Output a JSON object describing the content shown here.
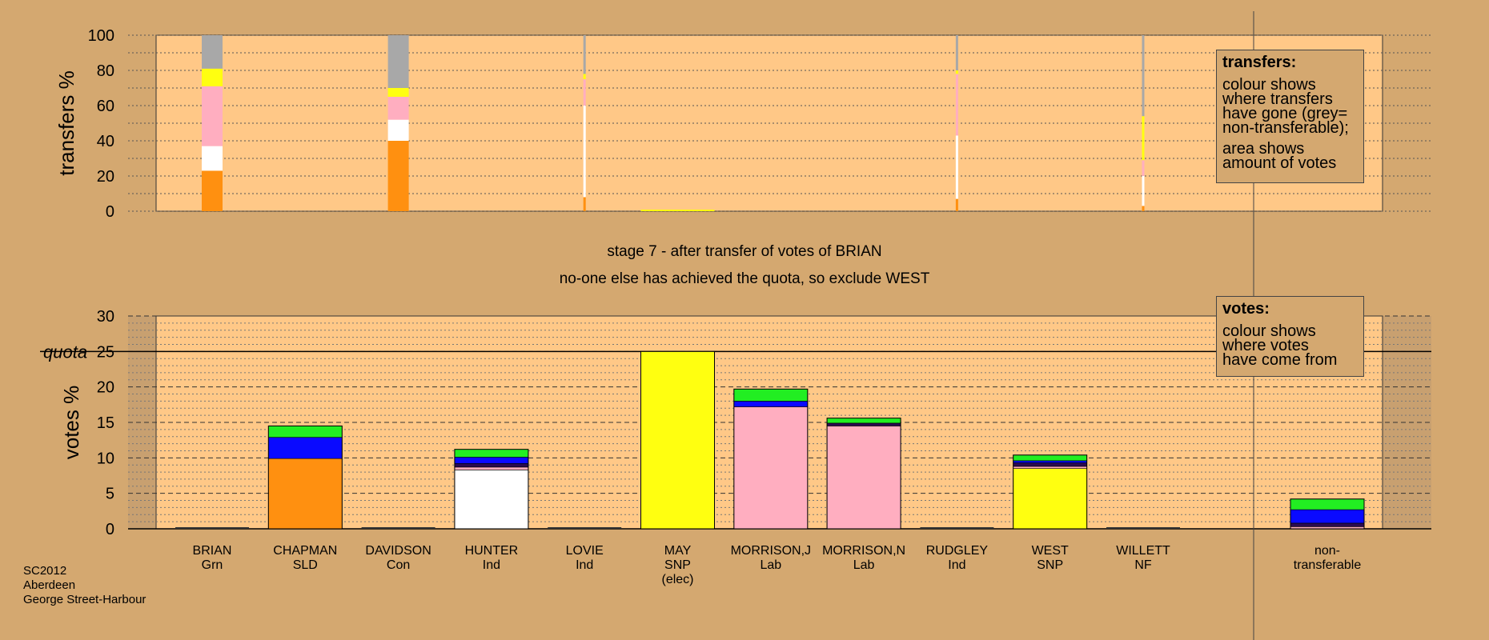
{
  "header": {
    "stage_line": "stage 7 - after transfer of votes of BRIAN",
    "note_line": "no-one else has achieved the quota, so exclude WEST"
  },
  "caption": [
    "SC2012",
    "Aberdeen",
    "George Street-Harbour"
  ],
  "legend_transfers": {
    "title": "transfers:",
    "lines_a": [
      "colour shows",
      "where transfers",
      "have gone (grey=",
      "non-transferable);"
    ],
    "lines_b": [
      "area shows",
      "amount of votes"
    ]
  },
  "legend_votes": {
    "title": "votes:",
    "lines": [
      "colour shows",
      "where votes",
      "have come from"
    ]
  },
  "colors": {
    "Grn": "#22ee22",
    "SLD": "#ff9010",
    "Con": "#0a0aff",
    "Ind": "#ffffff",
    "SNP": "#ffff10",
    "Lab": "#ffaec0",
    "NF": "#2a0a50",
    "non": "#a8a8a8",
    "panel": "#ffc887",
    "page": "#d4a870"
  },
  "chart_data": [
    {
      "type": "bar",
      "ylabel": "transfers %",
      "ylim": [
        0,
        100
      ],
      "yticks": [
        0,
        20,
        40,
        60,
        80,
        100
      ],
      "grid": true,
      "bars": [
        {
          "candidate": "BRIAN",
          "width": "full",
          "segments": [
            {
              "party": "SLD",
              "value": 23
            },
            {
              "party": "Ind",
              "value": 14
            },
            {
              "party": "Lab",
              "value": 34
            },
            {
              "party": "SNP",
              "value": 10
            },
            {
              "party": "non",
              "value": 19
            }
          ]
        },
        {
          "candidate": "DAVIDSON",
          "width": "full",
          "segments": [
            {
              "party": "SLD",
              "value": 40
            },
            {
              "party": "Ind",
              "value": 12
            },
            {
              "party": "Lab",
              "value": 13
            },
            {
              "party": "SNP",
              "value": 5
            },
            {
              "party": "non",
              "value": 30
            }
          ]
        },
        {
          "candidate": "LOVIE",
          "width": "thin",
          "segments": [
            {
              "party": "SLD",
              "value": 8
            },
            {
              "party": "Ind",
              "value": 52
            },
            {
              "party": "Lab",
              "value": 15
            },
            {
              "party": "SNP",
              "value": 3
            },
            {
              "party": "non",
              "value": 22
            }
          ]
        },
        {
          "candidate": "MAY",
          "width": "flat",
          "segments": [
            {
              "party": "SNP",
              "value": 1
            }
          ]
        },
        {
          "candidate": "RUDGLEY",
          "width": "thin",
          "segments": [
            {
              "party": "SLD",
              "value": 7
            },
            {
              "party": "Ind",
              "value": 36
            },
            {
              "party": "Lab",
              "value": 35
            },
            {
              "party": "SNP",
              "value": 2
            },
            {
              "party": "non",
              "value": 20
            }
          ]
        },
        {
          "candidate": "WILLETT",
          "width": "thin",
          "segments": [
            {
              "party": "SLD",
              "value": 3
            },
            {
              "party": "Ind",
              "value": 17
            },
            {
              "party": "Lab",
              "value": 9
            },
            {
              "party": "SNP",
              "value": 25
            },
            {
              "party": "non",
              "value": 46
            }
          ]
        }
      ]
    },
    {
      "type": "bar",
      "ylabel": "votes %",
      "ylim": [
        0,
        30
      ],
      "yticks": [
        0,
        5,
        10,
        15,
        20,
        25,
        30
      ],
      "quota_label": "quota",
      "quota": 25,
      "grid": true,
      "categories": [
        {
          "name": "BRIAN",
          "party": "Grn",
          "note": ""
        },
        {
          "name": "CHAPMAN",
          "party": "SLD",
          "note": ""
        },
        {
          "name": "DAVIDSON",
          "party": "Con",
          "note": ""
        },
        {
          "name": "HUNTER",
          "party": "Ind",
          "note": ""
        },
        {
          "name": "LOVIE",
          "party": "Ind",
          "note": ""
        },
        {
          "name": "MAY",
          "party": "SNP",
          "note": "(elec)"
        },
        {
          "name": "MORRISON,J",
          "party": "Lab",
          "note": ""
        },
        {
          "name": "MORRISON,N",
          "party": "Lab",
          "note": ""
        },
        {
          "name": "RUDGLEY",
          "party": "Ind",
          "note": ""
        },
        {
          "name": "WEST",
          "party": "SNP",
          "note": ""
        },
        {
          "name": "WILLETT",
          "party": "NF",
          "note": ""
        },
        {
          "name": "non-",
          "party": "transferable",
          "note": ""
        }
      ],
      "stacks": [
        [],
        [
          {
            "party": "SLD",
            "value": 9.9
          },
          {
            "party": "Con",
            "value": 3.0
          },
          {
            "party": "Grn",
            "value": 1.6
          }
        ],
        [],
        [
          {
            "party": "Ind",
            "value": 8.3
          },
          {
            "party": "Lab",
            "value": 0.4
          },
          {
            "party": "NF",
            "value": 0.5
          },
          {
            "party": "Con",
            "value": 0.9
          },
          {
            "party": "Grn",
            "value": 1.1
          }
        ],
        [],
        [
          {
            "party": "SNP",
            "value": 25.0
          }
        ],
        [
          {
            "party": "Lab",
            "value": 17.2
          },
          {
            "party": "Con",
            "value": 0.8
          },
          {
            "party": "Grn",
            "value": 1.7
          }
        ],
        [
          {
            "party": "Lab",
            "value": 14.5
          },
          {
            "party": "NF",
            "value": 0.4
          },
          {
            "party": "Grn",
            "value": 0.7
          }
        ],
        [],
        [
          {
            "party": "SNP",
            "value": 8.5
          },
          {
            "party": "Lab",
            "value": 0.3
          },
          {
            "party": "NF",
            "value": 0.5
          },
          {
            "party": "Con",
            "value": 0.3
          },
          {
            "party": "Grn",
            "value": 0.8
          }
        ],
        [],
        [
          {
            "party": "Lab",
            "value": 0.3
          },
          {
            "party": "NF",
            "value": 0.5
          },
          {
            "party": "Con",
            "value": 1.9
          },
          {
            "party": "Grn",
            "value": 1.5
          }
        ]
      ]
    }
  ]
}
